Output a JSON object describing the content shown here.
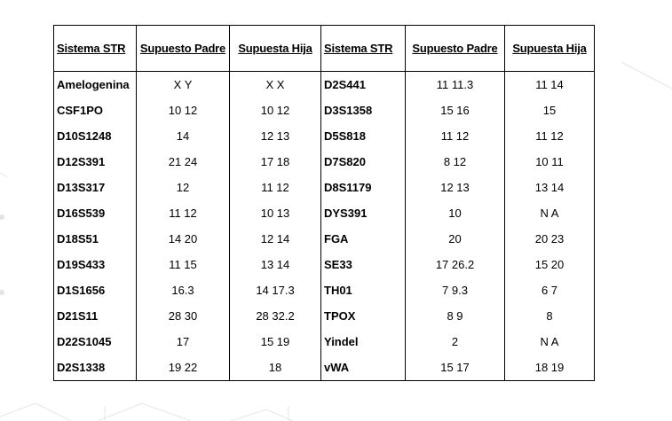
{
  "table": {
    "headers": [
      "Sistema STR",
      "Supuesto Padre",
      "Supuesta Hija",
      "Sistema STR",
      "Supuesto Padre",
      "Supuesta Hija"
    ],
    "rows": [
      [
        "Amelogenina",
        "X Y",
        "X X",
        "D2S441",
        "11 11.3",
        "11 14"
      ],
      [
        "CSF1PO",
        "10 12",
        "10 12",
        "D3S1358",
        "15 16",
        "15"
      ],
      [
        "D10S1248",
        "14",
        "12 13",
        "D5S818",
        "11 12",
        "11 12"
      ],
      [
        "D12S391",
        "21 24",
        "17 18",
        "D7S820",
        "8 12",
        "10 11"
      ],
      [
        "D13S317",
        "12",
        "11 12",
        "D8S1179",
        "12 13",
        "13 14"
      ],
      [
        "D16S539",
        "11 12",
        "10 13",
        "DYS391",
        "10",
        "N A"
      ],
      [
        "D18S51",
        "14 20",
        "12 14",
        "FGA",
        "20",
        "20 23"
      ],
      [
        "D19S433",
        "11 15",
        "13 14",
        "SE33",
        "17 26.2",
        "15 20"
      ],
      [
        "D1S1656",
        "16.3",
        "14 17.3",
        "TH01",
        "7 9.3",
        "6 7"
      ],
      [
        "D21S11",
        "28 30",
        "28 32.2",
        "TPOX",
        "8 9",
        "8"
      ],
      [
        "D22S1045",
        "17",
        "15 19",
        "Yindel",
        "2",
        "N A"
      ],
      [
        "D2S1338",
        "19 22",
        "18",
        "vWA",
        "15 17",
        "18 19"
      ]
    ]
  }
}
